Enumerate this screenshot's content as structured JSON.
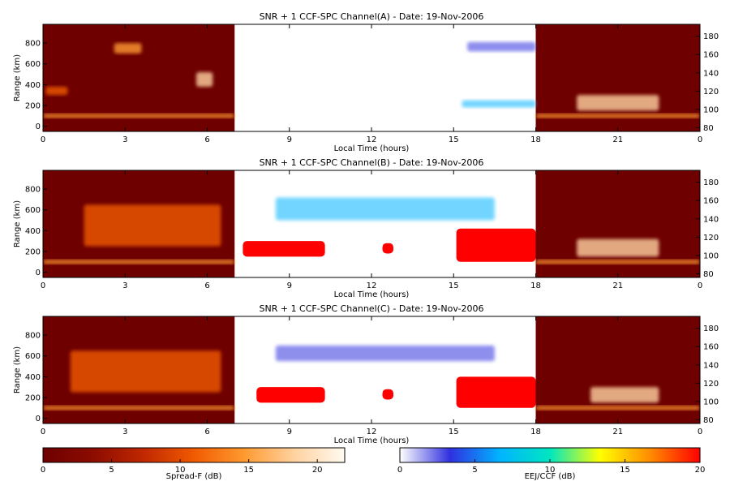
{
  "chart_data": [
    {
      "type": "heatmap",
      "title": "SNR + 1 CCF-SPC Channel(A) - Date: 19-Nov-2006",
      "xlabel": "Local Time (hours)",
      "ylabel": "Range (km)",
      "x_ticks": [
        "0",
        "3",
        "6",
        "9",
        "12",
        "15",
        "18",
        "21",
        "0"
      ],
      "y_ticks_left": [
        0,
        200,
        400,
        600,
        800
      ],
      "y_ticks_right": [
        80,
        100,
        120,
        140,
        160,
        180
      ],
      "xlim": [
        0,
        24
      ],
      "ylim": [
        -50,
        980
      ],
      "ylim_right": [
        76,
        193
      ],
      "night_colormap": "Spread-F (dB)",
      "day_colormap": "EEJ/CCF (dB)",
      "day_window_hours": [
        7,
        18
      ],
      "features": [
        {
          "region": "night",
          "t": [
            0.1,
            0.9
          ],
          "y": [
            300,
            380
          ],
          "intensity": 0.55
        },
        {
          "region": "night",
          "t": [
            0.0,
            7.0
          ],
          "y": [
            80,
            120
          ],
          "intensity": 0.6
        },
        {
          "region": "night",
          "t": [
            2.6,
            3.6
          ],
          "y": [
            700,
            800
          ],
          "intensity": 0.6
        },
        {
          "region": "night",
          "t": [
            5.6,
            6.2
          ],
          "y": [
            380,
            520
          ],
          "intensity": 0.9
        },
        {
          "region": "night",
          "t": [
            19.5,
            22.5
          ],
          "y": [
            150,
            300
          ],
          "intensity": 0.85
        },
        {
          "region": "night",
          "t": [
            18.0,
            24.0
          ],
          "y": [
            80,
            120
          ],
          "intensity": 0.6
        },
        {
          "region": "day",
          "t": [
            15.3,
            18.0
          ],
          "y": [
            180,
            250
          ],
          "intensity": 0.4
        },
        {
          "region": "day",
          "t": [
            15.5,
            18.0
          ],
          "y": [
            720,
            810
          ],
          "intensity": 0.1
        }
      ]
    },
    {
      "type": "heatmap",
      "title": "SNR + 1 CCF-SPC Channel(B) - Date: 19-Nov-2006",
      "xlabel": "Local Time (hours)",
      "ylabel": "Range (km)",
      "x_ticks": [
        "0",
        "3",
        "6",
        "9",
        "12",
        "15",
        "18",
        "21",
        "0"
      ],
      "y_ticks_left": [
        0,
        200,
        400,
        600,
        800
      ],
      "y_ticks_right": [
        80,
        100,
        120,
        140,
        160,
        180
      ],
      "xlim": [
        0,
        24
      ],
      "ylim": [
        -50,
        980
      ],
      "ylim_right": [
        76,
        193
      ],
      "night_colormap": "Spread-F (dB)",
      "day_colormap": "EEJ/CCF (dB)",
      "day_window_hours": [
        7,
        18
      ],
      "features": [
        {
          "region": "night",
          "t": [
            1.5,
            6.5
          ],
          "y": [
            250,
            650
          ],
          "intensity": 0.55
        },
        {
          "region": "night",
          "t": [
            0.0,
            7.0
          ],
          "y": [
            80,
            120
          ],
          "intensity": 0.7
        },
        {
          "region": "night",
          "t": [
            19.5,
            22.5
          ],
          "y": [
            150,
            320
          ],
          "intensity": 0.85
        },
        {
          "region": "night",
          "t": [
            18.0,
            24.0
          ],
          "y": [
            80,
            120
          ],
          "intensity": 0.6
        },
        {
          "region": "day",
          "t": [
            7.3,
            10.3
          ],
          "y": [
            150,
            300
          ],
          "intensity": 1.0
        },
        {
          "region": "day",
          "t": [
            12.4,
            12.8
          ],
          "y": [
            180,
            280
          ],
          "intensity": 1.0
        },
        {
          "region": "day",
          "t": [
            15.1,
            18.0
          ],
          "y": [
            100,
            420
          ],
          "intensity": 1.0
        },
        {
          "region": "day",
          "t": [
            8.5,
            16.5
          ],
          "y": [
            500,
            720
          ],
          "intensity": 0.25
        }
      ]
    },
    {
      "type": "heatmap",
      "title": "SNR + 1 CCF-SPC Channel(C) - Date: 19-Nov-2006",
      "xlabel": "Local Time (hours)",
      "ylabel": "Range (km)",
      "x_ticks": [
        "0",
        "3",
        "6",
        "9",
        "12",
        "15",
        "18",
        "21",
        "0"
      ],
      "y_ticks_left": [
        0,
        200,
        400,
        600,
        800
      ],
      "y_ticks_right": [
        80,
        100,
        120,
        140,
        160,
        180
      ],
      "xlim": [
        0,
        24
      ],
      "ylim": [
        -50,
        980
      ],
      "ylim_right": [
        76,
        193
      ],
      "night_colormap": "Spread-F (dB)",
      "day_colormap": "EEJ/CCF (dB)",
      "day_window_hours": [
        7,
        18
      ],
      "features": [
        {
          "region": "night",
          "t": [
            1.0,
            6.5
          ],
          "y": [
            250,
            650
          ],
          "intensity": 0.45
        },
        {
          "region": "night",
          "t": [
            0.0,
            7.0
          ],
          "y": [
            80,
            120
          ],
          "intensity": 0.65
        },
        {
          "region": "night",
          "t": [
            20.0,
            22.5
          ],
          "y": [
            150,
            300
          ],
          "intensity": 0.8
        },
        {
          "region": "night",
          "t": [
            18.0,
            24.0
          ],
          "y": [
            80,
            120
          ],
          "intensity": 0.6
        },
        {
          "region": "day",
          "t": [
            7.8,
            10.3
          ],
          "y": [
            150,
            300
          ],
          "intensity": 1.0
        },
        {
          "region": "day",
          "t": [
            12.4,
            12.8
          ],
          "y": [
            180,
            280
          ],
          "intensity": 1.0
        },
        {
          "region": "day",
          "t": [
            15.1,
            18.0
          ],
          "y": [
            100,
            400
          ],
          "intensity": 1.0
        },
        {
          "region": "day",
          "t": [
            8.5,
            16.5
          ],
          "y": [
            550,
            700
          ],
          "intensity": 0.15
        }
      ]
    }
  ],
  "colorbars": [
    {
      "label": "Spread-F (dB)",
      "ticks": [
        "0",
        "5",
        "10",
        "15",
        "20"
      ],
      "range": [
        0,
        22
      ],
      "stops": [
        "#6e0000",
        "#8c0c00",
        "#c02800",
        "#f05a00",
        "#ff9a30",
        "#ffd2a0",
        "#fffaf0"
      ]
    },
    {
      "label": "EEJ/CCF (dB)",
      "ticks": [
        "0",
        "5",
        "10",
        "15",
        "20"
      ],
      "range": [
        0,
        20
      ],
      "stops": [
        "#ffffff",
        "#3030e0",
        "#00b4ff",
        "#00e6c0",
        "#ffff00",
        "#ff8c00",
        "#ff0000"
      ]
    }
  ],
  "colors": {
    "night_background": "#6e0000",
    "day_background": "#ffffff",
    "axis": "#000000"
  }
}
